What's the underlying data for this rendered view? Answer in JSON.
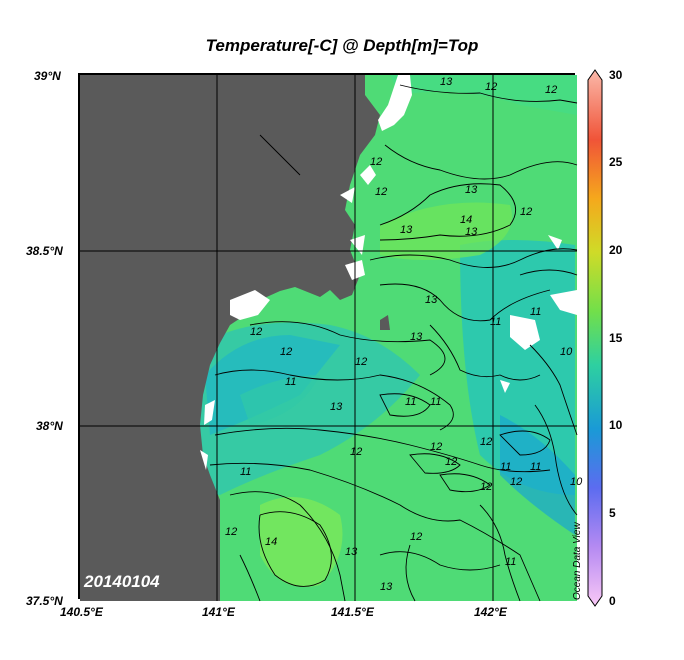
{
  "title": "Temperature[-C] @ Depth[m]=Top",
  "date": "20140104",
  "credit": "Ocean Data View",
  "map": {
    "lat_ticks": [
      "39°N",
      "38.5°N",
      "38°N",
      "37.5°N"
    ],
    "lon_ticks": [
      "140.5°E",
      "141°E",
      "141.5°E",
      "142°E"
    ],
    "land_color": "#5a5a5a",
    "no_data_color": "#ffffff",
    "grid": true
  },
  "colorbar": {
    "ticks": [
      "30",
      "25",
      "20",
      "15",
      "10",
      "5",
      "0"
    ],
    "min": 0,
    "max": 30,
    "colors": [
      "#f9b3f5",
      "#9c68ee",
      "#3a5ff2",
      "#16b3d8",
      "#3ed48a",
      "#8be13c",
      "#e8d222",
      "#f78a1c",
      "#f04a3a",
      "#fba7a0"
    ]
  },
  "contour_labels": [
    "13",
    "12",
    "12",
    "13",
    "14",
    "12",
    "13",
    "12",
    "12",
    "13",
    "12",
    "13",
    "11",
    "11",
    "10",
    "12",
    "11",
    "13",
    "12",
    "11",
    "11",
    "12",
    "12",
    "12",
    "12",
    "11",
    "11",
    "10",
    "14",
    "12",
    "13",
    "13",
    "12",
    "12",
    "11",
    "13",
    "12",
    "11"
  ]
}
